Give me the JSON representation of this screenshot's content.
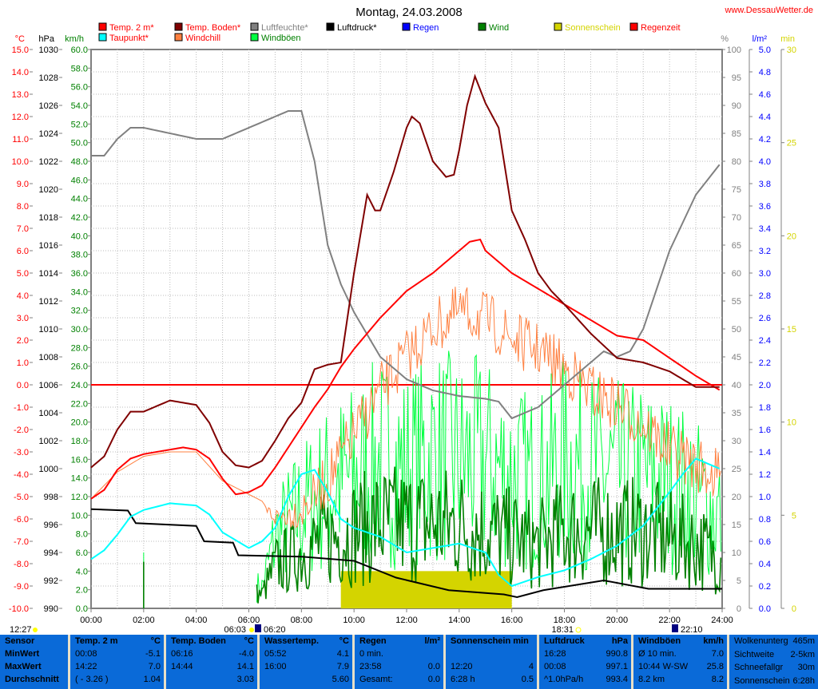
{
  "header": {
    "title": "Montag, 24.03.2008",
    "site": "www.DessauWetter.de"
  },
  "legend": [
    {
      "label": "Temp. 2 m*",
      "color": "#ff0000",
      "text": "#ff0000"
    },
    {
      "label": "Taupunkt*",
      "color": "#00ffff",
      "text": "#ff0000"
    },
    {
      "label": "Temp. Boden*",
      "color": "#800000",
      "text": "#ff0000"
    },
    {
      "label": "Windchill",
      "color": "#ff8040",
      "text": "#ff0000"
    },
    {
      "label": "Luftfeuchte*",
      "color": "#808080",
      "text": "#808080"
    },
    {
      "label": "Windböen",
      "color": "#00ff40",
      "text": "#008000"
    },
    {
      "label": "Luftdruck*",
      "color": "#000000",
      "text": "#000000"
    },
    {
      "label": "Regen",
      "color": "#0000ff",
      "text": "#0000ff"
    },
    {
      "label": "Wind",
      "color": "#008000",
      "text": "#008000"
    },
    {
      "label": "Sonnenschein",
      "color": "#d4d400",
      "text": "#d4d400"
    },
    {
      "label": "Regenzeit",
      "color": "#ff0000",
      "text": "#ff0000"
    }
  ],
  "axis_units": {
    "temp": "°C",
    "pressure": "hPa",
    "wind": "km/h",
    "humidity": "%",
    "rain": "l/m²",
    "sun": "min"
  },
  "bottom_markers": [
    {
      "label": "12:27",
      "hint": "moonset"
    },
    {
      "label": "06:03",
      "hint": "sunrise"
    },
    {
      "label": "06:20",
      "hint": "moonrise"
    },
    {
      "label": "18:31",
      "hint": "sunset"
    },
    {
      "label": "22:10",
      "hint": "moon"
    }
  ],
  "chart_data": {
    "type": "line",
    "title": "Montag, 24.03.2008",
    "x_ticks": [
      "00:00",
      "02:00",
      "04:00",
      "06:00",
      "08:00",
      "10:00",
      "12:00",
      "14:00",
      "16:00",
      "18:00",
      "20:00",
      "22:00",
      "24:00"
    ],
    "xlim": [
      0,
      24
    ],
    "axes": {
      "temp": [
        -10,
        15
      ],
      "pressure": [
        990,
        1030
      ],
      "wind": [
        0,
        60
      ],
      "humidity": [
        0,
        100
      ],
      "rain": [
        0,
        5
      ],
      "sun": [
        0,
        30
      ]
    },
    "series": [
      {
        "name": "Luftfeuchte*",
        "axis": "humidity",
        "color": "#808080",
        "x": [
          0,
          0.5,
          1,
          1.5,
          2,
          3,
          4,
          5,
          6,
          6.5,
          7,
          7.5,
          8,
          8.5,
          9,
          9.5,
          10,
          11,
          12,
          13,
          14,
          15,
          15.5,
          16,
          17,
          18,
          19,
          19.5,
          20,
          20.5,
          21,
          22,
          23,
          24
        ],
        "y": [
          81,
          81,
          84,
          86,
          86,
          85,
          84,
          84,
          86,
          87,
          88,
          89,
          89,
          80,
          65,
          58,
          53,
          45,
          41,
          39,
          38,
          37.5,
          37,
          34,
          36,
          40,
          44,
          46,
          45,
          46,
          50,
          64,
          74,
          80
        ]
      },
      {
        "name": "Temp. Boden*",
        "axis": "temp",
        "color": "#800000",
        "x": [
          0,
          0.5,
          1,
          1.5,
          2,
          3,
          3.5,
          4,
          4.5,
          5,
          5.5,
          6,
          6.5,
          7,
          7.5,
          8,
          8.5,
          9,
          9.5,
          10,
          10.5,
          10.8,
          11,
          11.5,
          12,
          12.2,
          12.5,
          13,
          13.5,
          13.8,
          14,
          14.3,
          14.6,
          14.8,
          15,
          15.5,
          16,
          16.5,
          17,
          17.5,
          18,
          19,
          20,
          21,
          22,
          23,
          24
        ],
        "y": [
          -3.7,
          -3.2,
          -2.0,
          -1.2,
          -1.2,
          -0.7,
          -0.8,
          -0.9,
          -1.7,
          -3.0,
          -3.6,
          -3.7,
          -3.4,
          -2.5,
          -1.5,
          -0.8,
          0.7,
          0.9,
          1.0,
          5.0,
          8.5,
          7.8,
          7.8,
          9.5,
          11.5,
          12.0,
          11.7,
          10.0,
          9.3,
          9.4,
          10.5,
          12.5,
          13.8,
          13.2,
          12.6,
          11.5,
          7.8,
          6.5,
          5.0,
          4.2,
          3.6,
          2.3,
          1.2,
          1.0,
          0.6,
          -0.1,
          -0.1
        ]
      },
      {
        "name": "Temp. 2 m*",
        "axis": "temp",
        "color": "#ff0000",
        "x": [
          0,
          0.5,
          1,
          1.5,
          2,
          3,
          3.5,
          4,
          4.5,
          5,
          5.5,
          6,
          6.5,
          7,
          7.5,
          8,
          8.5,
          9,
          9.5,
          10,
          11,
          12,
          13,
          14,
          14.4,
          14.8,
          15,
          15.5,
          16,
          17,
          18,
          19,
          20,
          21,
          22,
          23,
          24
        ],
        "y": [
          -5.1,
          -4.7,
          -3.8,
          -3.3,
          -3.1,
          -2.9,
          -2.8,
          -2.9,
          -3.3,
          -4.2,
          -4.9,
          -4.8,
          -4.5,
          -3.7,
          -2.8,
          -1.9,
          -1.0,
          -0.2,
          0.8,
          1.6,
          3.0,
          4.2,
          5.0,
          6.0,
          6.4,
          6.5,
          6.0,
          5.5,
          5.0,
          4.3,
          3.6,
          2.9,
          2.2,
          2.0,
          1.2,
          0.4,
          -0.3
        ]
      },
      {
        "name": "Windchill",
        "axis": "temp",
        "color": "#ff8040",
        "noisy": true,
        "x": [
          0,
          1,
          2,
          3,
          4,
          5,
          6,
          7,
          8,
          9,
          10,
          11,
          12,
          13,
          14,
          15,
          16,
          17,
          18,
          19,
          20,
          21,
          22,
          23,
          24
        ],
        "y": [
          -5.1,
          -3.9,
          -3.2,
          -3.0,
          -3.0,
          -4.3,
          -4.9,
          -5.5,
          -4.8,
          -3.0,
          -1.0,
          1.0,
          2.5,
          3.8,
          4.5,
          4.2,
          3.3,
          2.8,
          2.0,
          1.0,
          0.3,
          -0.5,
          -1.7,
          -2.3,
          -3.0
        ]
      },
      {
        "name": "Taupunkt*",
        "axis": "temp",
        "color": "#00ffff",
        "x": [
          0,
          0.5,
          1,
          1.5,
          2,
          3,
          4,
          4.5,
          5,
          6,
          6.5,
          7,
          7.5,
          8,
          8.5,
          9,
          9.5,
          10,
          11,
          12,
          13,
          14,
          15,
          15.5,
          16,
          17,
          18,
          19,
          20,
          21,
          22,
          22.5,
          23,
          24
        ],
        "y": [
          -7.8,
          -7.4,
          -6.7,
          -5.9,
          -5.6,
          -5.3,
          -5.4,
          -5.8,
          -6.6,
          -7.3,
          -7.0,
          -6.4,
          -5.0,
          -4.0,
          -3.8,
          -4.8,
          -6.0,
          -6.4,
          -6.8,
          -7.5,
          -7.3,
          -7.1,
          -7.5,
          -8.5,
          -9.0,
          -8.6,
          -8.3,
          -7.8,
          -7.2,
          -6.3,
          -4.8,
          -4.0,
          -3.3,
          -3.8
        ]
      },
      {
        "name": "Luftdruck*",
        "axis": "pressure",
        "color": "#000000",
        "step": true,
        "x": [
          0,
          1.4,
          1.7,
          4,
          4.3,
          5.4,
          5.6,
          8,
          10,
          11.6,
          13.6,
          15.7,
          16.2,
          17.2,
          19.5,
          21.2,
          24
        ],
        "y": [
          997.1,
          997.0,
          996.1,
          995.9,
          994.8,
          994.7,
          993.8,
          993.7,
          993.4,
          992.2,
          991.3,
          991.0,
          990.8,
          991.3,
          992.0,
          991.4,
          991.4
        ]
      },
      {
        "name": "Windböen",
        "axis": "wind",
        "color": "#00ff40",
        "bars": true,
        "x": [
          2,
          6.5,
          7,
          8,
          9,
          10,
          11,
          12,
          13,
          14,
          15,
          16,
          17,
          18,
          19,
          20,
          21,
          22,
          23,
          24
        ],
        "y": [
          6,
          3,
          10,
          14,
          17,
          19,
          21,
          20,
          22,
          21,
          21,
          19,
          18,
          21,
          20,
          19,
          19,
          18,
          16,
          13
        ]
      },
      {
        "name": "Wind",
        "axis": "wind",
        "color": "#008000",
        "bars": true,
        "x": [
          2,
          6.5,
          7,
          8,
          9,
          10,
          11,
          12,
          13,
          14,
          15,
          16,
          17,
          18,
          19,
          20,
          21,
          22,
          23,
          24
        ],
        "y": [
          5,
          2,
          6,
          8,
          10,
          11,
          12,
          12,
          12,
          12,
          11,
          10,
          9,
          11,
          11,
          11,
          11,
          10,
          9,
          7
        ]
      },
      {
        "name": "Sonnenschein",
        "axis": "sun",
        "color": "#d4d400",
        "block": [
          9.5,
          16,
          2
        ]
      },
      {
        "name": "Regen",
        "axis": "rain",
        "color": "#0000ff",
        "total": 0.0
      }
    ]
  },
  "table": {
    "sensor": {
      "h": "Sensor",
      "rows": [
        "MinWert",
        "MaxWert",
        "Durchschnitt"
      ]
    },
    "temp2m": {
      "h": "Temp. 2 m",
      "u": "°C",
      "rows": [
        [
          "00:08",
          "-5.1"
        ],
        [
          "14:22",
          "7.0"
        ],
        [
          "( - 3.26 )",
          "1.04"
        ]
      ]
    },
    "boden": {
      "h": "Temp. Boden",
      "u": "°C",
      "rows": [
        [
          "06:16",
          "-4.0"
        ],
        [
          "14:44",
          "14.1"
        ],
        [
          "",
          "3.03"
        ]
      ]
    },
    "wasser": {
      "h": "Wassertemp.",
      "u": "°C",
      "rows": [
        [
          "05:52",
          "4.1"
        ],
        [
          "16:00",
          "7.9"
        ],
        [
          "",
          "5.60"
        ]
      ]
    },
    "regen": {
      "h": "Regen",
      "u": "l/m²",
      "rows": [
        [
          "0 min.",
          ""
        ],
        [
          "23:58",
          "0.0"
        ],
        [
          "Gesamt:",
          "0.0"
        ]
      ]
    },
    "sonne": {
      "h": "Sonnenschein min",
      "u": "",
      "rows": [
        [
          "",
          ""
        ],
        [
          "12:20",
          "4"
        ],
        [
          "6:28 h",
          "0.5"
        ]
      ]
    },
    "druck": {
      "h": "Luftdruck",
      "u": "hPa",
      "rows": [
        [
          "16:28",
          "990.8"
        ],
        [
          "00:08",
          "997.1"
        ],
        [
          "^1.0hPa/h",
          "993.4"
        ]
      ]
    },
    "wind": {
      "h": "Windböen",
      "u": "km/h",
      "rows": [
        [
          "Ø 10 min.",
          "7.0"
        ],
        [
          "10:44   W-SW",
          "25.8"
        ],
        [
          "8.2 km",
          "8.2"
        ]
      ]
    },
    "extra": {
      "rows": [
        [
          "Wolkenunterg",
          "465m"
        ],
        [
          "Sichtweite",
          "2-5km"
        ],
        [
          "Schneefallgr",
          "30m"
        ],
        [
          "Sonnenschein",
          "6:28h"
        ]
      ]
    }
  }
}
